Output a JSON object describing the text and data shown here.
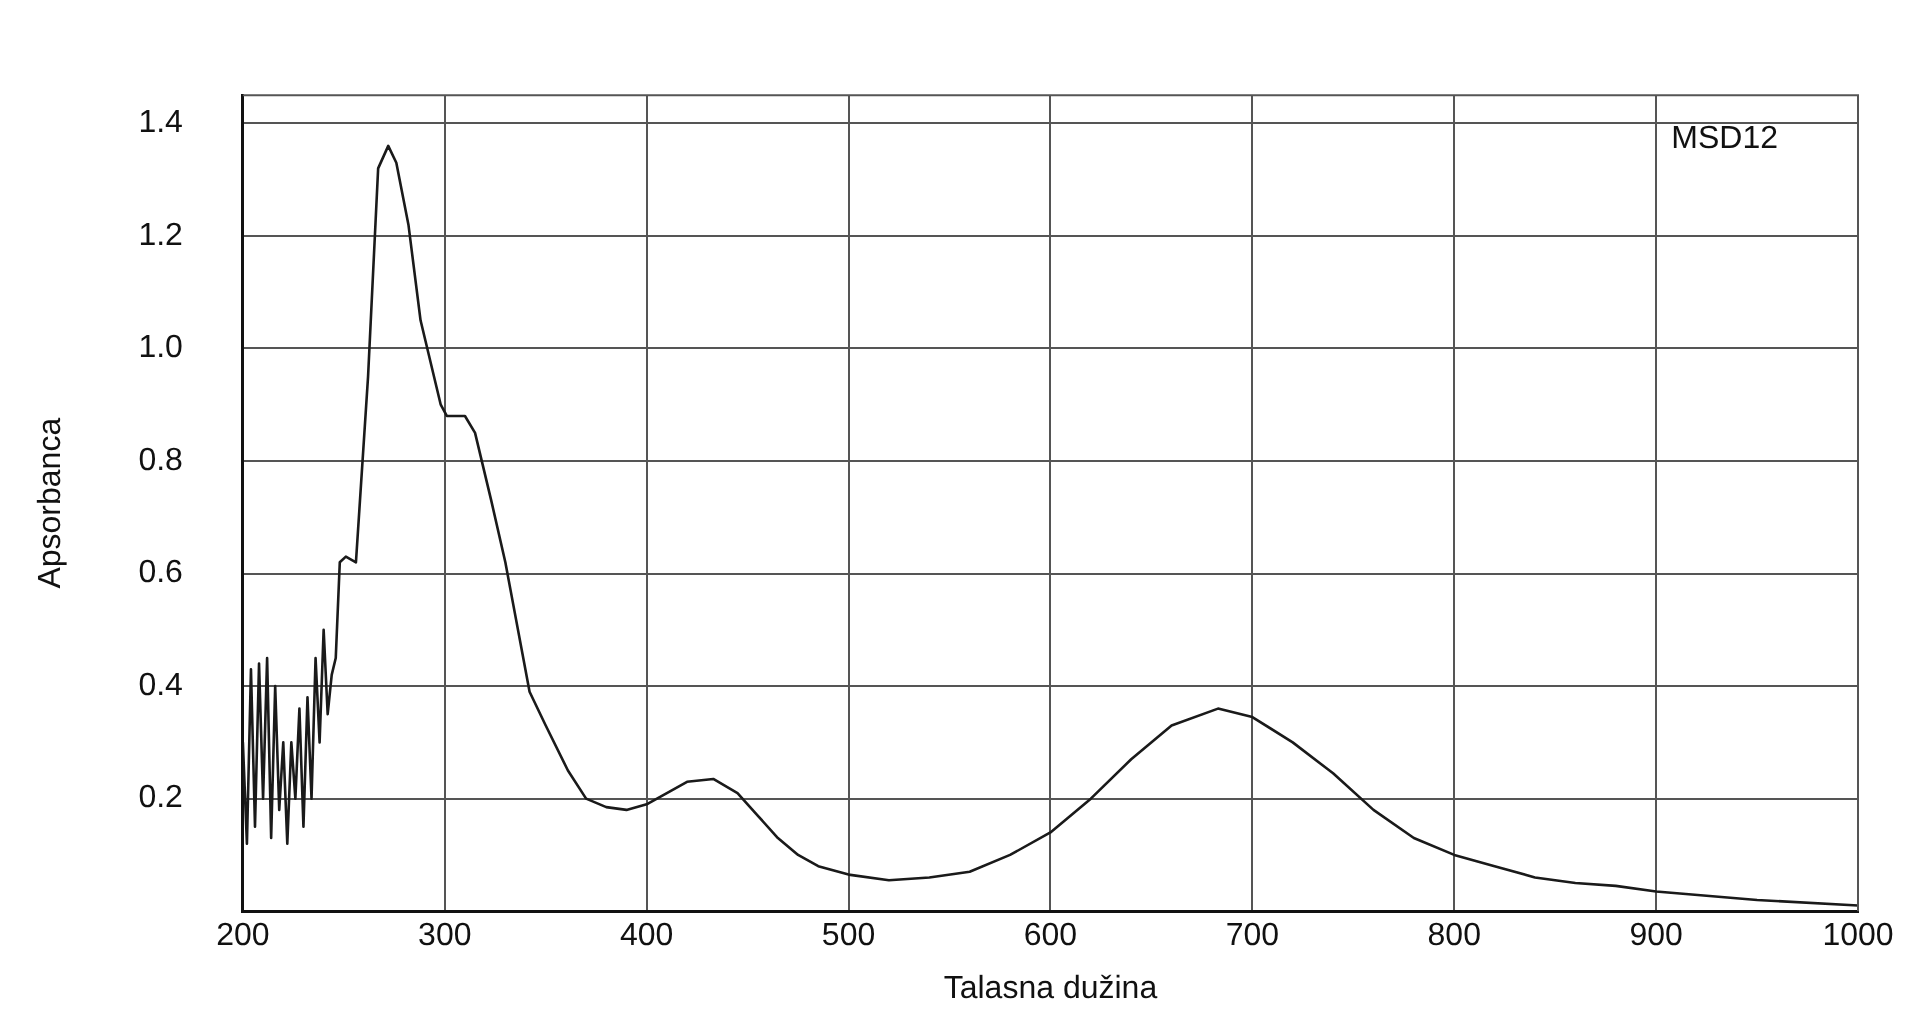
{
  "chart_data": {
    "type": "line",
    "xlabel": "Talasna dužina",
    "ylabel": "Apsorbanca",
    "annotations": [
      "MSD12"
    ],
    "x": [
      200,
      202,
      204,
      206,
      208,
      210,
      212,
      214,
      216,
      218,
      220,
      222,
      224,
      226,
      228,
      230,
      232,
      234,
      236,
      238,
      240,
      242,
      244,
      246,
      248,
      251,
      256,
      262,
      267,
      272,
      276,
      282,
      288,
      298,
      301,
      310,
      315,
      323,
      330,
      342,
      350,
      361,
      370,
      380,
      390,
      400,
      410,
      420,
      433,
      445,
      455,
      465,
      475,
      485,
      500,
      520,
      540,
      560,
      580,
      600,
      620,
      640,
      660,
      683,
      700,
      720,
      740,
      760,
      780,
      800,
      820,
      840,
      860,
      880,
      900,
      950,
      1000
    ],
    "series": [
      {
        "color": "#1a1a1a",
        "values": [
          0.3,
          0.12,
          0.43,
          0.15,
          0.44,
          0.2,
          0.45,
          0.13,
          0.4,
          0.18,
          0.3,
          0.12,
          0.3,
          0.2,
          0.36,
          0.15,
          0.38,
          0.2,
          0.45,
          0.3,
          0.5,
          0.35,
          0.42,
          0.45,
          0.62,
          0.63,
          0.62,
          0.95,
          1.32,
          1.36,
          1.33,
          1.22,
          1.05,
          0.9,
          0.88,
          0.88,
          0.85,
          0.73,
          0.62,
          0.39,
          0.33,
          0.25,
          0.2,
          0.185,
          0.18,
          0.19,
          0.21,
          0.23,
          0.235,
          0.21,
          0.17,
          0.13,
          0.1,
          0.08,
          0.065,
          0.055,
          0.06,
          0.07,
          0.1,
          0.14,
          0.2,
          0.27,
          0.33,
          0.36,
          0.345,
          0.3,
          0.245,
          0.18,
          0.13,
          0.1,
          0.08,
          0.06,
          0.05,
          0.045,
          0.035,
          0.02,
          0.01
        ]
      }
    ],
    "xlim": [
      200,
      1000
    ],
    "xticks": [
      200,
      300,
      400,
      500,
      600,
      700,
      800,
      900,
      1000
    ],
    "ylim": [
      0,
      1.45
    ],
    "yticks": [
      {
        "value": 0,
        "label": null
      },
      0.2,
      0.4,
      0.6,
      0.8,
      {
        "value": 1,
        "label": "1.0"
      },
      1.2,
      1.4
    ],
    "grid": true,
    "legend": false,
    "marker": "none",
    "line_style": "solid"
  }
}
